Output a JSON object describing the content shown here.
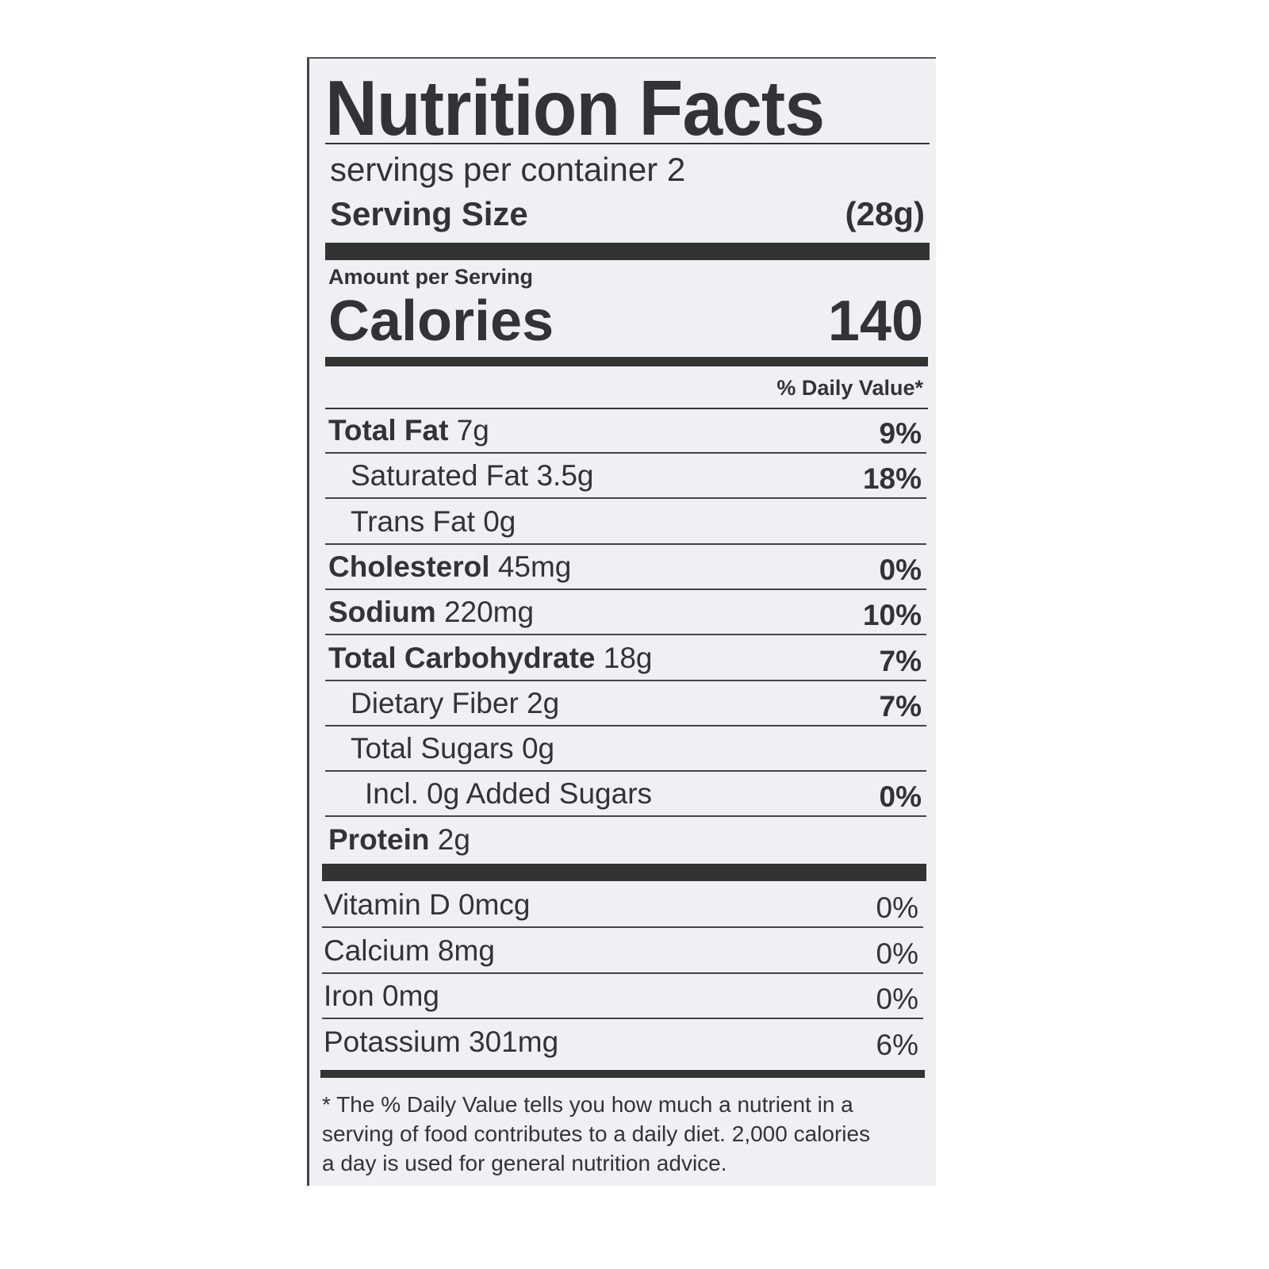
{
  "title": "Nutrition Facts",
  "servings_per_container": "servings per container 2",
  "serving_size_label": "Serving Size",
  "serving_size_value": "(28g)",
  "amount_per_serving": "Amount per Serving",
  "calories_label": "Calories",
  "calories_value": "140",
  "daily_value_header": "% Daily Value*",
  "nutrients": [
    {
      "name": "Total Fat",
      "amount": "7g",
      "dv": "9%",
      "bold": true,
      "indent": 0
    },
    {
      "name": "Saturated Fat",
      "amount": "3.5g",
      "dv": "18%",
      "bold": false,
      "indent": 1
    },
    {
      "name": "Trans Fat",
      "amount": "0g",
      "dv": "",
      "bold": false,
      "indent": 1
    },
    {
      "name": "Cholesterol",
      "amount": "45mg",
      "dv": "0%",
      "bold": true,
      "indent": 0
    },
    {
      "name": "Sodium",
      "amount": "220mg",
      "dv": "10%",
      "bold": true,
      "indent": 0
    },
    {
      "name": "Total Carbohydrate",
      "amount": "18g",
      "dv": "7%",
      "bold": true,
      "indent": 0
    },
    {
      "name": "Dietary Fiber",
      "amount": "2g",
      "dv": "7%",
      "bold": false,
      "indent": 1
    },
    {
      "name": "Total Sugars",
      "amount": "0g",
      "dv": "",
      "bold": false,
      "indent": 1
    },
    {
      "name": "Incl. 0g Added Sugars",
      "amount": "",
      "dv": "0%",
      "bold": false,
      "indent": 2
    },
    {
      "name": "Protein",
      "amount": "2g",
      "dv": "",
      "bold": true,
      "indent": 0
    }
  ],
  "vitamins": [
    {
      "name": "Vitamin D 0mcg",
      "dv": "0%"
    },
    {
      "name": "Calcium 8mg",
      "dv": "0%"
    },
    {
      "name": "Iron 0mg",
      "dv": "0%"
    },
    {
      "name": "Potassium 301mg",
      "dv": "6%"
    }
  ],
  "footnote": "* The % Daily Value tells you how much a nutrient in a serving of food contributes to a daily diet. 2,000 calories a day is used for general nutrition advice.",
  "colors": {
    "background": "#eef0f3",
    "ink": "#333336"
  }
}
